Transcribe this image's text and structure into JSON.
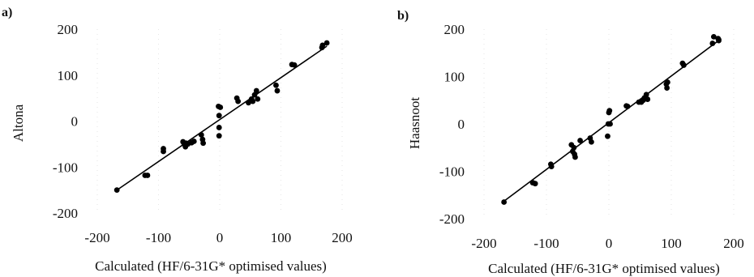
{
  "chart_data": [
    {
      "type": "scatter",
      "panel_label": "a)",
      "xlabel": "Calculated (HF/6-31G* optimised values)",
      "ylabel": "Altona",
      "xlim": [
        -200,
        200
      ],
      "ylim": [
        -200,
        200
      ],
      "xticks": [
        -200,
        -100,
        0,
        100,
        200
      ],
      "yticks": [
        -200,
        -100,
        0,
        100,
        200
      ],
      "xtick_labels": [
        "-200",
        "-100",
        "0",
        "100",
        "200"
      ],
      "ytick_labels": [
        "-200",
        "-100",
        "0",
        "100",
        "200"
      ],
      "grid": false,
      "colors": {
        "points": "#000000",
        "line": "#000000"
      },
      "points": [
        [
          -168,
          -150
        ],
        [
          -122,
          -118
        ],
        [
          -118,
          -118
        ],
        [
          -92,
          -60
        ],
        [
          -92,
          -66
        ],
        [
          -60,
          -45
        ],
        [
          -58,
          -50
        ],
        [
          -56,
          -56
        ],
        [
          -55,
          -48
        ],
        [
          -52,
          -50
        ],
        [
          -46,
          -47
        ],
        [
          -42,
          -44
        ],
        [
          -30,
          -30
        ],
        [
          -28,
          -40
        ],
        [
          -27,
          -48
        ],
        [
          -2,
          32
        ],
        [
          -1,
          12
        ],
        [
          -1,
          -14
        ],
        [
          -1,
          -32
        ],
        [
          1,
          30
        ],
        [
          28,
          50
        ],
        [
          30,
          43
        ],
        [
          47,
          40
        ],
        [
          52,
          48
        ],
        [
          54,
          43
        ],
        [
          57,
          57
        ],
        [
          60,
          66
        ],
        [
          62,
          48
        ],
        [
          92,
          78
        ],
        [
          94,
          66
        ],
        [
          118,
          123
        ],
        [
          122,
          122
        ],
        [
          167,
          160
        ],
        [
          168,
          165
        ],
        [
          175,
          170
        ]
      ],
      "fit_line": {
        "x": [
          -170,
          175
        ],
        "y": [
          -152,
          163
        ]
      }
    },
    {
      "type": "scatter",
      "panel_label": "b)",
      "xlabel": "Calculated (HF/6-31G* optimised values)",
      "ylabel": "Haasnoot",
      "xlim": [
        -200,
        200
      ],
      "ylim": [
        -200,
        200
      ],
      "xticks": [
        -200,
        -100,
        0,
        100,
        200
      ],
      "yticks": [
        -200,
        -100,
        0,
        100,
        200
      ],
      "xtick_labels": [
        "-200",
        "-100",
        "0",
        "100",
        "200"
      ],
      "ytick_labels": [
        "-200",
        "-100",
        "0",
        "100",
        "200"
      ],
      "grid": false,
      "colors": {
        "points": "#000000",
        "line": "#000000"
      },
      "points": [
        [
          -168,
          -165
        ],
        [
          -122,
          -124
        ],
        [
          -118,
          -126
        ],
        [
          -93,
          -85
        ],
        [
          -92,
          -90
        ],
        [
          -60,
          -44
        ],
        [
          -58,
          -58
        ],
        [
          -56,
          -50
        ],
        [
          -55,
          -64
        ],
        [
          -54,
          -70
        ],
        [
          -46,
          -35
        ],
        [
          -30,
          -30
        ],
        [
          -28,
          -38
        ],
        [
          -2,
          -26
        ],
        [
          -1,
          0
        ],
        [
          0,
          24
        ],
        [
          1,
          28
        ],
        [
          2,
          0
        ],
        [
          28,
          38
        ],
        [
          30,
          37
        ],
        [
          48,
          46
        ],
        [
          52,
          46
        ],
        [
          55,
          50
        ],
        [
          57,
          55
        ],
        [
          60,
          62
        ],
        [
          62,
          52
        ],
        [
          92,
          84
        ],
        [
          93,
          76
        ],
        [
          94,
          88
        ],
        [
          118,
          128
        ],
        [
          120,
          124
        ],
        [
          166,
          170
        ],
        [
          168,
          184
        ],
        [
          175,
          180
        ],
        [
          176,
          176
        ]
      ],
      "fit_line": {
        "x": [
          -170,
          180
        ],
        "y": [
          -165,
          180
        ]
      }
    }
  ]
}
